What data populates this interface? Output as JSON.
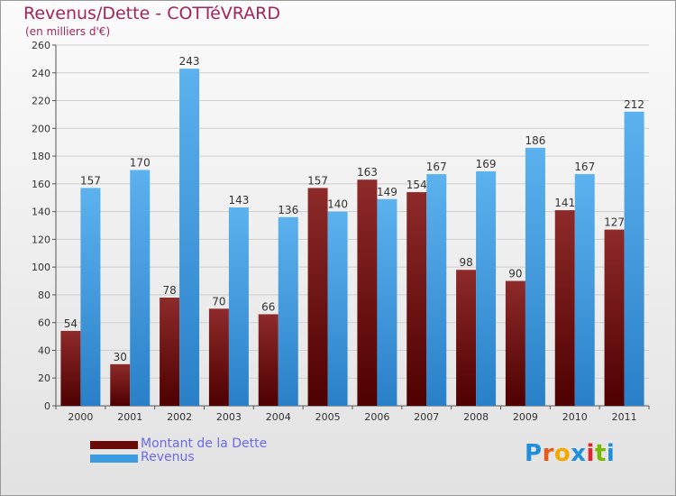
{
  "header": {
    "title": "Revenus/Dette - COTTéVRARD",
    "subtitle": "(en milliers d'€)"
  },
  "legend": [
    {
      "label": "Montant de la Dette",
      "color": "#6b0a0a"
    },
    {
      "label": "Revenus",
      "color": "#3d9be0"
    }
  ],
  "logo": {
    "text": "Proxiti",
    "letter_colors": [
      "#1e8fd8",
      "#e85a1a",
      "#f2a900",
      "#1e8fd8",
      "#e8212a",
      "#7ab800",
      "#1e8fd8"
    ]
  },
  "chart_data": {
    "type": "bar",
    "title": "Revenus/Dette - COTTéVRARD",
    "ylabel": "(en milliers d'€)",
    "xlabel": "",
    "categories": [
      "2000",
      "2001",
      "2002",
      "2003",
      "2004",
      "2005",
      "2006",
      "2007",
      "2008",
      "2009",
      "2010",
      "2011"
    ],
    "series": [
      {
        "name": "Montant de la Dette",
        "color": "#7a1a1a",
        "values": [
          54,
          30,
          78,
          70,
          66,
          157,
          163,
          154,
          98,
          90,
          141,
          127
        ]
      },
      {
        "name": "Revenus",
        "color": "#4aa6e8",
        "values": [
          157,
          170,
          243,
          143,
          136,
          140,
          149,
          167,
          169,
          186,
          167,
          212
        ]
      }
    ],
    "ylim": [
      0,
      260
    ],
    "yticks": [
      0,
      20,
      40,
      60,
      80,
      100,
      120,
      140,
      160,
      180,
      200,
      220,
      240,
      260
    ],
    "grid": true,
    "legend_position": "bottom-left"
  }
}
